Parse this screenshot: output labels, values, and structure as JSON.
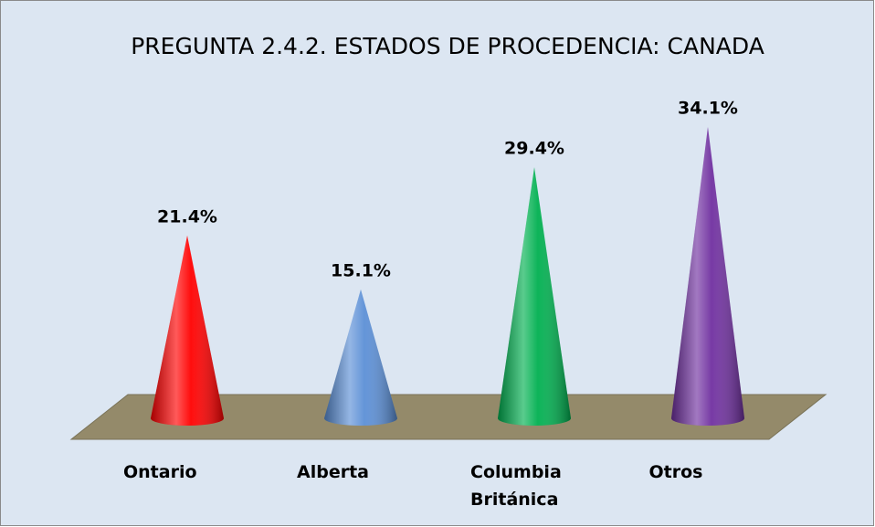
{
  "chart_data": {
    "type": "cone",
    "title": "PREGUNTA 2.4.2. ESTADOS DE PROCEDENCIA: CANADA",
    "categories": [
      "Ontario",
      "Alberta",
      "Columbia Británica",
      "Otros"
    ],
    "values": [
      21.4,
      15.1,
      29.4,
      34.1
    ],
    "value_labels": [
      "21.4%",
      "15.1%",
      "29.4%",
      "34.1%"
    ],
    "colors": [
      "#ff0000",
      "#5b8fd6",
      "#00b050",
      "#7030a0"
    ]
  }
}
